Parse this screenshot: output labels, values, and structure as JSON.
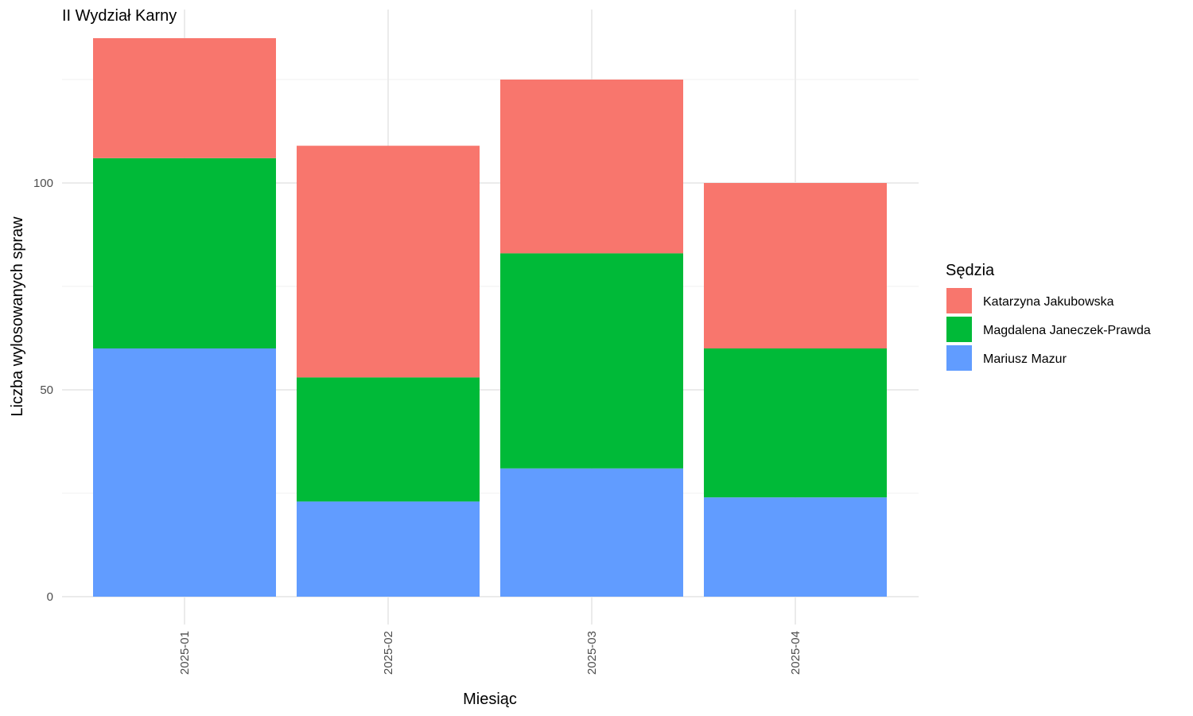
{
  "chart_data": {
    "type": "bar",
    "stacked": true,
    "title": "II Wydział Karny",
    "xlabel": "Miesiąc",
    "ylabel": "Liczba wylosowanych spraw",
    "categories": [
      "2025-01",
      "2025-02",
      "2025-03",
      "2025-04"
    ],
    "yticks": [
      0,
      50,
      100
    ],
    "ylim": [
      0,
      140
    ],
    "grid": true,
    "legend": {
      "title": "Sędzia",
      "position": "right",
      "order": [
        "Katarzyna Jakubowska",
        "Magdalena Janeczek-Prawda",
        "Mariusz Mazur"
      ]
    },
    "series": [
      {
        "name": "Mariusz Mazur",
        "color": "#619CFF",
        "values": [
          60,
          23,
          31,
          24
        ]
      },
      {
        "name": "Magdalena Janeczek-Prawda",
        "color": "#00BA38",
        "values": [
          46,
          30,
          52,
          36
        ]
      },
      {
        "name": "Katarzyna Jakubowska",
        "color": "#F8766D",
        "values": [
          29,
          56,
          42,
          40
        ]
      }
    ]
  }
}
